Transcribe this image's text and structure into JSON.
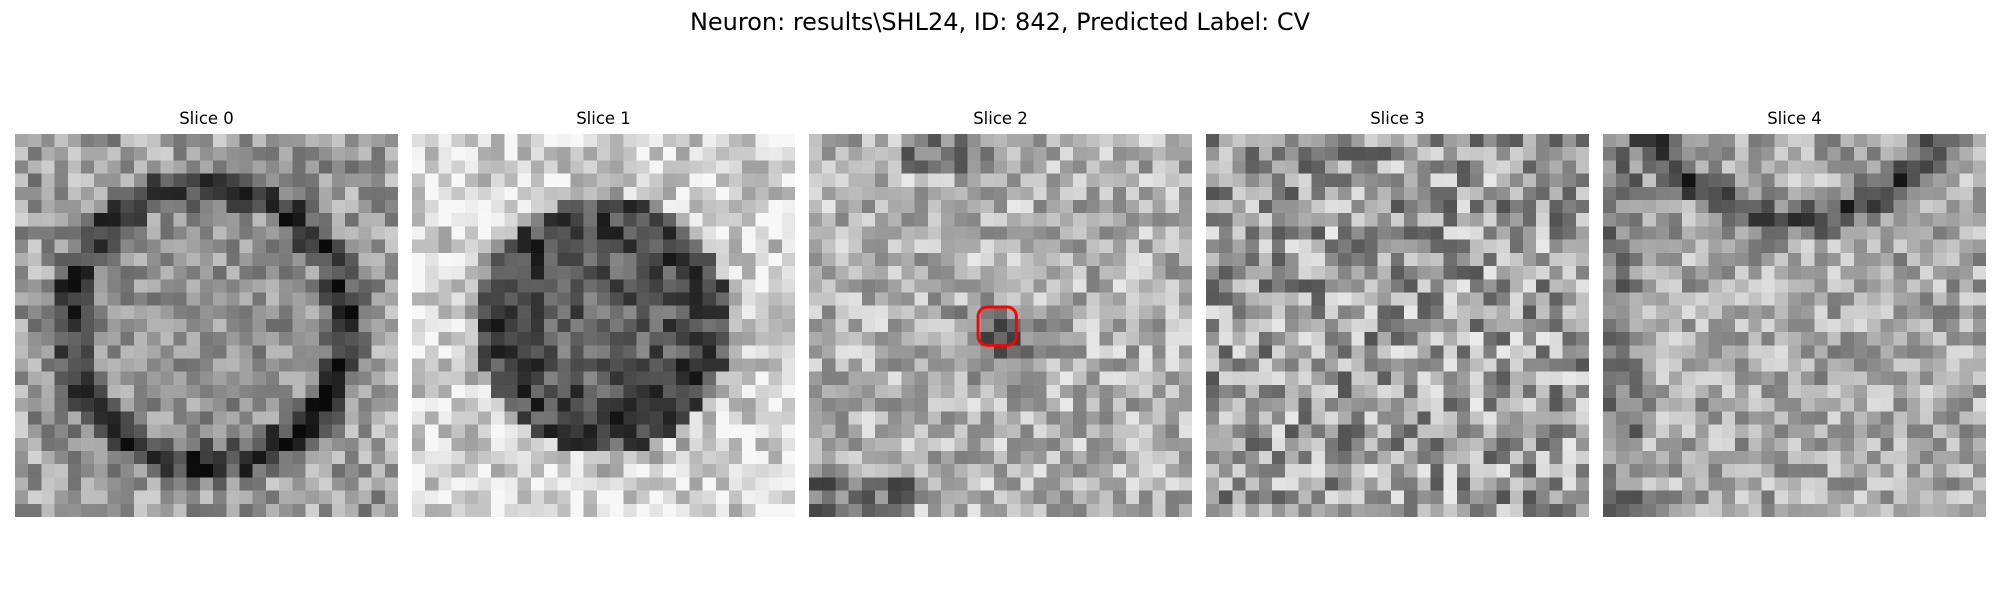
{
  "figure": {
    "title": "Neuron: results\\SHL24, ID: 842, Predicted Label: CV"
  },
  "slices": [
    {
      "title": "Slice 0",
      "pattern": "ring",
      "ring_darkness": 0.45,
      "background": 0.72
    },
    {
      "title": "Slice 1",
      "pattern": "filled-disk",
      "ring_darkness": 0.55,
      "background": 0.78
    },
    {
      "title": "Slice 2",
      "pattern": "noise-with-dark-spots",
      "ring_darkness": 0.0,
      "background": 0.7,
      "has_marker": true
    },
    {
      "title": "Slice 3",
      "pattern": "noise",
      "ring_darkness": 0.0,
      "background": 0.62
    },
    {
      "title": "Slice 4",
      "pattern": "arc",
      "ring_darkness": 0.4,
      "background": 0.66
    }
  ],
  "marker": {
    "slice_index": 2,
    "shape": "rounded-square",
    "color": "#ff0000"
  },
  "colors": {
    "marker": "#ff0000",
    "colormap": "grayscale"
  }
}
